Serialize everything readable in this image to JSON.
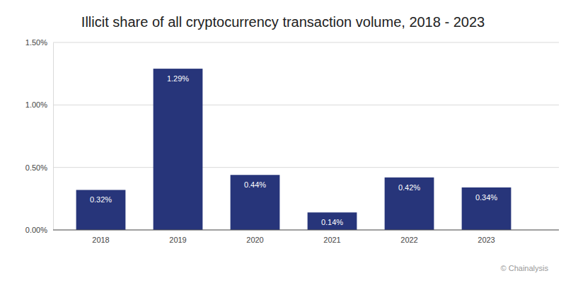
{
  "chart_data": {
    "type": "bar",
    "title": "Illicit share of all cryptocurrency transaction volume, 2018 - 2023",
    "categories": [
      "2018",
      "2019",
      "2020",
      "2021",
      "2022",
      "2023"
    ],
    "values": [
      0.32,
      1.29,
      0.44,
      0.14,
      0.42,
      0.34
    ],
    "value_labels": [
      "0.32%",
      "1.29%",
      "0.44%",
      "0.14%",
      "0.42%",
      "0.34%"
    ],
    "color": "#27357a",
    "ylim": [
      0,
      1.5
    ],
    "yticks": [
      {
        "value": 0,
        "label": "0.00%"
      },
      {
        "value": 0.5,
        "label": "0.50%"
      },
      {
        "value": 1,
        "label": "1.00%"
      },
      {
        "value": 1.5,
        "label": "1.50%"
      }
    ],
    "grid": true,
    "data_labels": true,
    "annotation": "© Chainalysis"
  }
}
